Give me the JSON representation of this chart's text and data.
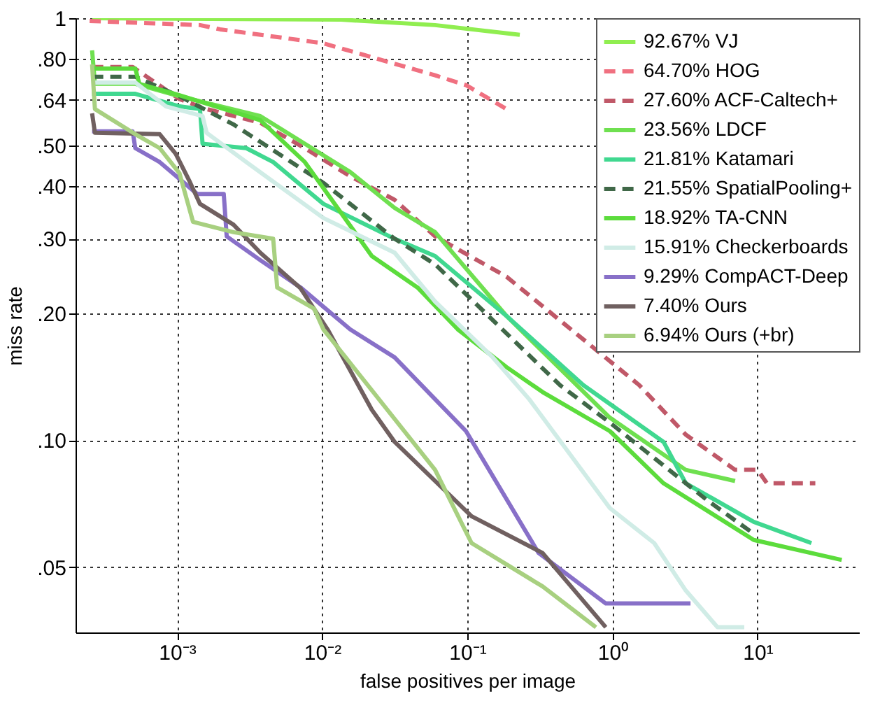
{
  "chart_data": {
    "type": "line",
    "xlabel": "false positives per image",
    "ylabel": "miss rate",
    "log": "xy",
    "grid": true,
    "legend": "top right",
    "xlim": [
      0.0002,
      50
    ],
    "ylim": [
      0.035,
      1
    ],
    "xticks": [
      {
        "value": 0.001,
        "label": "10⁻³"
      },
      {
        "value": 0.01,
        "label": "10⁻²"
      },
      {
        "value": 0.1,
        "label": "10⁻¹"
      },
      {
        "value": 1,
        "label": "10⁰"
      },
      {
        "value": 10,
        "label": "10¹"
      }
    ],
    "yticks": [
      {
        "value": 0.05,
        "label": ".05"
      },
      {
        "value": 0.1,
        "label": ".10"
      },
      {
        "value": 0.2,
        "label": ".20"
      },
      {
        "value": 0.3,
        "label": ".30"
      },
      {
        "value": 0.4,
        "label": ".40"
      },
      {
        "value": 0.5,
        "label": ".50"
      },
      {
        "value": 0.64,
        "label": ".64"
      },
      {
        "value": 0.8,
        "label": ".80"
      },
      1
    ],
    "series": [
      {
        "name": "92.67% VJ",
        "color": "#90ee50",
        "line_style": "solid",
        "x": [
          0.00026,
          0.0135,
          0.06,
          0.23
        ],
        "values": [
          1,
          0.992,
          0.963,
          0.913
        ]
      },
      {
        "name": "64.70% HOG",
        "color": "#f07080",
        "line_style": "dashed",
        "x": [
          0.00025,
          0.00144,
          0.00198,
          0.0102,
          0.06,
          0.098,
          0.186
        ],
        "values": [
          0.985,
          0.963,
          0.941,
          0.872,
          0.732,
          0.694,
          0.609
        ]
      },
      {
        "name": "27.60% ACF-Caltech+",
        "color": "#c05868",
        "line_style": "dashed",
        "x": [
          0.00026,
          0.000495,
          0.00104,
          0.0016,
          0.00375,
          0.0076,
          0.0156,
          0.0316,
          0.06,
          0.186,
          1.53,
          3.2,
          7.0,
          10,
          11.6,
          25
        ],
        "values": [
          0.766,
          0.766,
          0.643,
          0.609,
          0.565,
          0.492,
          0.422,
          0.371,
          0.304,
          0.244,
          0.135,
          0.103,
          0.085,
          0.085,
          0.079,
          0.079
        ]
      },
      {
        "name": "23.56% LDCF",
        "color": "#6fe050",
        "line_style": "solid",
        "x": [
          0.00026,
          0.000272,
          0.000516,
          0.00104,
          0.00375,
          0.0156,
          0.0316,
          0.06,
          0.186,
          0.96,
          3.2,
          7.0
        ],
        "values": [
          0.839,
          0.699,
          0.699,
          0.653,
          0.586,
          0.432,
          0.355,
          0.311,
          0.197,
          0.113,
          0.085,
          0.08
        ]
      },
      {
        "name": "21.81% Katamari",
        "color": "#40d890",
        "line_style": "solid",
        "x": [
          0.00026,
          0.000516,
          0.00104,
          0.00144,
          0.0015,
          0.003,
          0.0046,
          0.0102,
          0.0316,
          0.06,
          0.186,
          0.63,
          2.25,
          3.2,
          9.4,
          23.5
        ],
        "values": [
          0.662,
          0.662,
          0.618,
          0.609,
          0.504,
          0.492,
          0.456,
          0.363,
          0.3,
          0.273,
          0.197,
          0.135,
          0.099,
          0.079,
          0.064,
          0.057
        ]
      },
      {
        "name": "21.55% SpatialPooling+",
        "color": "#406848",
        "line_style": "dashed",
        "x": [
          0.00026,
          0.000516,
          0.00104,
          0.00245,
          0.0102,
          0.0316,
          0.06,
          0.435,
          0.96,
          1.7,
          4.5,
          9.4
        ],
        "values": [
          0.726,
          0.726,
          0.653,
          0.56,
          0.407,
          0.3,
          0.261,
          0.135,
          0.11,
          0.094,
          0.072,
          0.06
        ]
      },
      {
        "name": "18.92% TA-CNN",
        "color": "#5cdc3c",
        "line_style": "solid",
        "x": [
          0.00026,
          0.000516,
          0.00055,
          0.00104,
          0.00375,
          0.0076,
          0.022,
          0.0454,
          0.086,
          0.186,
          0.33,
          0.96,
          2.25,
          9.4,
          38
        ],
        "values": [
          0.76,
          0.76,
          0.699,
          0.657,
          0.573,
          0.456,
          0.273,
          0.23,
          0.183,
          0.149,
          0.13,
          0.105,
          0.079,
          0.058,
          0.052
        ]
      },
      {
        "name": "15.91% Checkerboards",
        "color": "#d0ece6",
        "line_style": "solid",
        "x": [
          0.00026,
          0.000516,
          0.00084,
          0.0015,
          0.0016,
          0.003,
          0.0102,
          0.0316,
          0.06,
          0.15,
          0.267,
          0.96,
          1.94,
          3.2,
          5.3,
          8.1
        ],
        "values": [
          0.704,
          0.704,
          0.618,
          0.586,
          0.535,
          0.456,
          0.336,
          0.278,
          0.213,
          0.157,
          0.125,
          0.069,
          0.057,
          0.044,
          0.036,
          0.036
        ]
      },
      {
        "name": "9.29% CompACT-Deep",
        "color": "#8870c8",
        "line_style": "solid",
        "x": [
          0.00026,
          0.000495,
          0.000516,
          0.00076,
          0.00138,
          0.0021,
          0.0022,
          0.00375,
          0.0071,
          0.0156,
          0.0316,
          0.06,
          0.098,
          0.31,
          0.9,
          3.45
        ],
        "values": [
          0.539,
          0.539,
          0.492,
          0.456,
          0.383,
          0.383,
          0.304,
          0.267,
          0.23,
          0.183,
          0.157,
          0.125,
          0.105,
          0.054,
          0.041,
          0.041
        ]
      },
      {
        "name": "7.40% Ours",
        "color": "#706060",
        "line_style": "solid",
        "x": [
          0.00026,
          0.000272,
          0.00076,
          0.00098,
          0.00121,
          0.00144,
          0.00245,
          0.00375,
          0.0071,
          0.0109,
          0.022,
          0.0316,
          0.107,
          0.33,
          0.9
        ],
        "values": [
          0.595,
          0.535,
          0.531,
          0.477,
          0.413,
          0.363,
          0.324,
          0.278,
          0.229,
          0.183,
          0.118,
          0.099,
          0.066,
          0.054,
          0.036
        ]
      },
      {
        "name": "6.94% Ours (+br)",
        "color": "#a8d080",
        "line_style": "solid",
        "x": [
          0.00026,
          0.000272,
          0.000516,
          0.00076,
          0.00104,
          0.00129,
          0.00245,
          0.0046,
          0.0049,
          0.0088,
          0.0102,
          0.06,
          0.107,
          0.33,
          0.77
        ],
        "values": [
          0.777,
          0.609,
          0.531,
          0.492,
          0.429,
          0.329,
          0.311,
          0.3,
          0.23,
          0.205,
          0.183,
          0.085,
          0.057,
          0.045,
          0.036
        ]
      }
    ]
  }
}
